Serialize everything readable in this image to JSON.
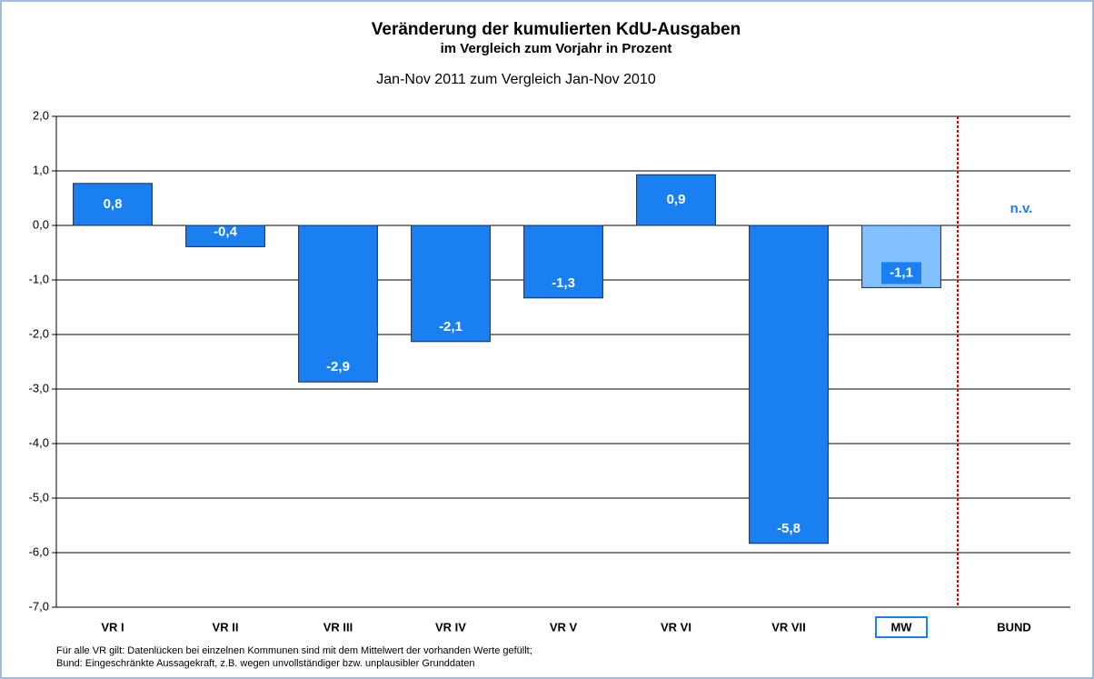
{
  "chart_data": {
    "type": "bar",
    "title": "Veränderung der kumulierten KdU-Ausgaben",
    "subtitle": "im Vergleich zum Vorjahr in Prozent",
    "period": "Jan-Nov 2011 zum Vergleich Jan-Nov 2010",
    "categories": [
      "VR I",
      "VR II",
      "VR III",
      "VR IV",
      "VR V",
      "VR VI",
      "VR VII",
      "MW",
      "BUND"
    ],
    "values": [
      0.77,
      -0.39,
      -2.87,
      -2.13,
      -1.33,
      0.93,
      -5.83,
      -1.14,
      null
    ],
    "value_labels": [
      "0,8",
      "-0,4",
      "-2,9",
      "-2,1",
      "-1,3",
      "0,9",
      "-5,8",
      "-1,1",
      "n.v."
    ],
    "colors": [
      "#1a7ff0",
      "#1a7ff0",
      "#1a7ff0",
      "#1a7ff0",
      "#1a7ff0",
      "#1a7ff0",
      "#1a7ff0",
      "#82c0ff",
      "#1a7ff0"
    ],
    "highlight_index": 7,
    "divider": {
      "after_index": 7,
      "color": "#e00000"
    },
    "ylim": [
      -7,
      2
    ],
    "yticks": [
      {
        "value": -7,
        "label": "-7,0"
      },
      {
        "value": -6,
        "label": "-6,0"
      },
      {
        "value": -5,
        "label": "-5,0"
      },
      {
        "value": -4,
        "label": "-4,0"
      },
      {
        "value": -3,
        "label": "-3,0"
      },
      {
        "value": -2,
        "label": "-2,0"
      },
      {
        "value": -1,
        "label": "-1,0"
      },
      {
        "value": 0,
        "label": "0,0"
      },
      {
        "value": 1,
        "label": "1,0"
      },
      {
        "value": 2,
        "label": "2,0"
      }
    ],
    "grid": true,
    "footnotes": [
      "Für alle VR gilt: Datenlücken bei einzelnen Kommunen sind mit dem Mittelwert der vorhanden Werte gefüllt;",
      "Bund: Eingeschränkte Aussagekraft, z.B. wegen unvollständiger bzw. unplausibler Grunddaten"
    ]
  }
}
